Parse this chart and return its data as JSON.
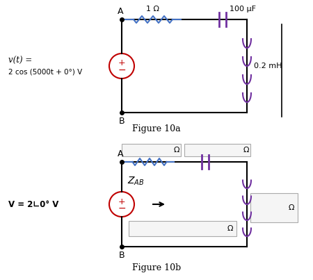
{
  "fig_width": 4.5,
  "fig_height": 4.03,
  "dpi": 100,
  "bg_color": "#ffffff",
  "resistor_color": "#4472c4",
  "capacitor_color": "#7030a0",
  "inductor_color": "#7030a0",
  "source_color": "#c00000",
  "wire_color": "#000000",
  "fig10a_title": "Figure 10a",
  "fig10b_title": "Figure 10b",
  "label_R": "1 Ω",
  "label_C": "100 μF",
  "label_L": "0.2 mH",
  "label_v1": "v(t) =",
  "label_v2": "2 cos (5000t + 0°) V",
  "label_V": "V = 2∟0° V",
  "label_A": "A",
  "label_B": "B",
  "box_edge_color": "#aaaaaa",
  "box_face_color": "#f5f5f5",
  "omega": "Ω"
}
